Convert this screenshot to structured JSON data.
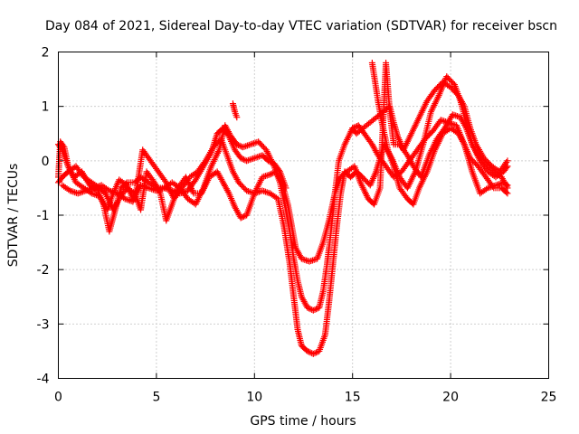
{
  "chart_data": {
    "type": "scatter",
    "title": "Day 084 of 2021, Sidereal Day-to-day VTEC variation (SDTVAR) for receiver bscn",
    "xlabel": "GPS time / hours",
    "ylabel": "SDTVAR / TECUs",
    "xlim": [
      0,
      25
    ],
    "ylim": [
      -4,
      2
    ],
    "xticks": [
      0,
      5,
      10,
      15,
      20,
      25
    ],
    "yticks": [
      -4,
      -3,
      -2,
      -1,
      0,
      1,
      2
    ],
    "grid": true,
    "marker": "plus",
    "color": "#ff0000",
    "series": [
      {
        "points": [
          [
            0.0,
            -0.3
          ],
          [
            0.1,
            0.35
          ],
          [
            0.3,
            0.25
          ],
          [
            0.5,
            -0.1
          ],
          [
            0.8,
            -0.3
          ],
          [
            1.2,
            -0.2
          ],
          [
            1.6,
            -0.45
          ],
          [
            2.0,
            -0.55
          ],
          [
            2.3,
            -0.8
          ],
          [
            2.6,
            -1.3
          ],
          [
            2.9,
            -0.9
          ],
          [
            3.2,
            -0.5
          ],
          [
            3.5,
            -0.4
          ],
          [
            3.9,
            -0.4
          ],
          [
            4.2,
            -0.3
          ],
          [
            4.6,
            -0.4
          ],
          [
            5.0,
            -0.5
          ],
          [
            5.4,
            -0.5
          ],
          [
            5.8,
            -0.4
          ],
          [
            6.2,
            -0.5
          ],
          [
            6.6,
            -0.7
          ],
          [
            7.0,
            -0.8
          ],
          [
            7.4,
            -0.5
          ],
          [
            7.8,
            -0.1
          ],
          [
            8.2,
            0.2
          ],
          [
            8.5,
            0.65
          ],
          [
            8.8,
            0.45
          ],
          [
            9.1,
            0.3
          ],
          [
            9.4,
            0.25
          ],
          [
            9.8,
            0.3
          ],
          [
            10.2,
            0.35
          ],
          [
            10.6,
            0.2
          ],
          [
            11.0,
            -0.1
          ],
          [
            11.3,
            -0.4
          ],
          [
            11.6,
            -0.9
          ],
          [
            11.8,
            -1.3
          ],
          [
            12.0,
            -1.8
          ],
          [
            12.2,
            -2.2
          ],
          [
            12.4,
            -2.5
          ],
          [
            12.7,
            -2.7
          ],
          [
            13.0,
            -2.75
          ],
          [
            13.3,
            -2.7
          ],
          [
            13.5,
            -2.4
          ],
          [
            13.7,
            -1.9
          ],
          [
            13.9,
            -1.3
          ],
          [
            14.1,
            -0.6
          ],
          [
            14.3,
            0.0
          ],
          [
            14.6,
            0.3
          ],
          [
            15.0,
            0.6
          ],
          [
            15.3,
            0.65
          ],
          [
            15.6,
            0.5
          ],
          [
            16.0,
            0.3
          ],
          [
            16.3,
            0.1
          ],
          [
            16.7,
            -0.1
          ],
          [
            17.1,
            -0.3
          ],
          [
            17.5,
            -0.2
          ],
          [
            17.9,
            0.0
          ],
          [
            18.3,
            0.2
          ],
          [
            18.7,
            0.4
          ],
          [
            19.1,
            0.55
          ],
          [
            19.5,
            0.75
          ],
          [
            19.9,
            0.7
          ],
          [
            20.3,
            0.65
          ],
          [
            20.7,
            0.3
          ],
          [
            21.1,
            -0.2
          ],
          [
            21.5,
            -0.6
          ],
          [
            21.9,
            -0.5
          ],
          [
            22.3,
            -0.45
          ],
          [
            22.7,
            -0.4
          ],
          [
            22.9,
            -0.45
          ]
        ]
      },
      {
        "points": [
          [
            0.0,
            0.3
          ],
          [
            0.2,
            0.2
          ],
          [
            0.5,
            -0.1
          ],
          [
            0.9,
            -0.4
          ],
          [
            1.3,
            -0.5
          ],
          [
            1.7,
            -0.6
          ],
          [
            2.1,
            -0.65
          ],
          [
            2.5,
            -0.9
          ],
          [
            2.8,
            -0.6
          ],
          [
            3.1,
            -0.35
          ],
          [
            3.5,
            -0.45
          ],
          [
            3.8,
            -0.7
          ],
          [
            4.0,
            -0.5
          ],
          [
            4.3,
            0.2
          ],
          [
            4.7,
            0.0
          ],
          [
            5.1,
            -0.2
          ],
          [
            5.5,
            -0.4
          ],
          [
            5.9,
            -0.7
          ],
          [
            6.3,
            -0.5
          ],
          [
            6.7,
            -0.3
          ],
          [
            7.1,
            -0.2
          ],
          [
            7.5,
            0.0
          ],
          [
            7.9,
            0.25
          ],
          [
            8.3,
            0.4
          ],
          [
            8.6,
            0.1
          ],
          [
            8.9,
            -0.2
          ],
          [
            9.2,
            -0.4
          ],
          [
            9.6,
            -0.55
          ],
          [
            10.0,
            -0.6
          ],
          [
            10.4,
            -0.55
          ],
          [
            10.8,
            -0.6
          ],
          [
            11.2,
            -0.7
          ],
          [
            11.5,
            -1.2
          ],
          [
            11.8,
            -1.9
          ],
          [
            12.0,
            -2.5
          ],
          [
            12.2,
            -3.1
          ],
          [
            12.4,
            -3.4
          ],
          [
            12.7,
            -3.5
          ],
          [
            13.0,
            -3.55
          ],
          [
            13.3,
            -3.5
          ],
          [
            13.6,
            -3.2
          ],
          [
            13.8,
            -2.6
          ],
          [
            14.0,
            -1.9
          ],
          [
            14.2,
            -1.2
          ],
          [
            14.4,
            -0.6
          ],
          [
            14.6,
            -0.2
          ],
          [
            14.9,
            -0.3
          ],
          [
            15.2,
            -0.2
          ],
          [
            15.5,
            -0.3
          ],
          [
            15.9,
            -0.45
          ],
          [
            16.2,
            -0.2
          ],
          [
            16.6,
            0.3
          ],
          [
            17.0,
            0.05
          ],
          [
            17.4,
            -0.3
          ],
          [
            17.8,
            -0.5
          ],
          [
            18.2,
            -0.2
          ],
          [
            18.6,
            0.3
          ],
          [
            19.0,
            0.9
          ],
          [
            19.4,
            1.2
          ],
          [
            19.8,
            1.55
          ],
          [
            20.2,
            1.4
          ],
          [
            20.5,
            1.1
          ],
          [
            20.8,
            0.7
          ],
          [
            21.1,
            0.3
          ],
          [
            21.5,
            0.0
          ],
          [
            21.9,
            -0.2
          ],
          [
            22.3,
            -0.3
          ],
          [
            22.7,
            -0.2
          ],
          [
            22.9,
            -0.1
          ]
        ]
      },
      {
        "points": [
          [
            0.0,
            -0.4
          ],
          [
            0.2,
            -0.3
          ],
          [
            0.5,
            -0.2
          ],
          [
            0.9,
            -0.1
          ],
          [
            1.3,
            -0.3
          ],
          [
            1.7,
            -0.4
          ],
          [
            2.1,
            -0.5
          ],
          [
            2.4,
            -0.6
          ],
          [
            2.8,
            -0.9
          ],
          [
            3.1,
            -0.7
          ],
          [
            3.5,
            -0.5
          ],
          [
            3.9,
            -0.6
          ],
          [
            4.2,
            -0.9
          ],
          [
            4.5,
            -0.2
          ],
          [
            4.9,
            -0.4
          ],
          [
            5.2,
            -0.6
          ],
          [
            5.5,
            -1.1
          ],
          [
            5.8,
            -0.8
          ],
          [
            6.1,
            -0.5
          ],
          [
            6.5,
            -0.3
          ],
          [
            6.9,
            -0.6
          ],
          [
            7.3,
            -0.6
          ],
          [
            7.7,
            -0.3
          ],
          [
            8.1,
            -0.2
          ],
          [
            8.4,
            -0.4
          ],
          [
            8.7,
            -0.6
          ],
          [
            9.0,
            -0.85
          ],
          [
            9.3,
            -1.05
          ],
          [
            9.6,
            -1.0
          ],
          [
            10.0,
            -0.6
          ],
          [
            10.4,
            -0.3
          ],
          [
            10.8,
            -0.25
          ],
          [
            11.1,
            -0.2
          ],
          [
            11.4,
            -0.4
          ],
          [
            11.7,
            -0.8
          ],
          [
            11.9,
            -1.2
          ],
          [
            12.1,
            -1.6
          ],
          [
            12.4,
            -1.8
          ],
          [
            12.8,
            -1.85
          ],
          [
            13.2,
            -1.8
          ],
          [
            13.5,
            -1.5
          ],
          [
            13.8,
            -1.1
          ],
          [
            14.1,
            -0.6
          ],
          [
            14.4,
            -0.3
          ],
          [
            14.7,
            -0.2
          ],
          [
            15.1,
            -0.1
          ],
          [
            15.4,
            -0.4
          ],
          [
            15.8,
            -0.7
          ],
          [
            16.1,
            -0.8
          ],
          [
            16.4,
            -0.5
          ],
          [
            16.7,
            1.8
          ],
          [
            16.9,
            0.9
          ],
          [
            17.1,
            0.3
          ],
          [
            17.4,
            0.3
          ],
          [
            17.8,
            0.1
          ],
          [
            18.1,
            -0.1
          ],
          [
            18.5,
            -0.3
          ],
          [
            18.9,
            0.1
          ],
          [
            19.3,
            0.4
          ],
          [
            19.7,
            0.6
          ],
          [
            20.1,
            0.85
          ],
          [
            20.5,
            0.8
          ],
          [
            20.8,
            0.6
          ],
          [
            21.1,
            0.3
          ],
          [
            21.4,
            0.1
          ],
          [
            21.8,
            -0.05
          ],
          [
            22.2,
            -0.2
          ],
          [
            22.6,
            -0.3
          ],
          [
            22.9,
            -0.5
          ]
        ]
      },
      {
        "points": [
          [
            0.2,
            -0.45
          ],
          [
            0.6,
            -0.55
          ],
          [
            1.0,
            -0.6
          ],
          [
            1.4,
            -0.55
          ],
          [
            1.8,
            -0.5
          ],
          [
            2.2,
            -0.45
          ],
          [
            2.6,
            -0.55
          ],
          [
            3.0,
            -0.6
          ],
          [
            3.4,
            -0.7
          ],
          [
            3.8,
            -0.75
          ],
          [
            4.2,
            -0.45
          ],
          [
            4.6,
            -0.5
          ],
          [
            5.0,
            -0.55
          ],
          [
            5.4,
            -0.5
          ],
          [
            5.8,
            -0.55
          ],
          [
            6.2,
            -0.6
          ],
          [
            6.6,
            -0.55
          ],
          [
            7.0,
            -0.35
          ],
          [
            7.4,
            -0.1
          ],
          [
            7.8,
            0.15
          ],
          [
            8.1,
            0.5
          ],
          [
            8.4,
            0.6
          ],
          [
            8.7,
            0.45
          ],
          [
            9.0,
            0.2
          ],
          [
            9.3,
            0.05
          ],
          [
            9.6,
            0.0
          ],
          [
            10.0,
            0.05
          ],
          [
            10.4,
            0.1
          ],
          [
            10.7,
            0.0
          ],
          [
            11.0,
            -0.05
          ],
          [
            11.3,
            -0.2
          ],
          [
            11.6,
            -0.5
          ],
          [
            16.0,
            1.8
          ],
          [
            16.3,
            1.1
          ],
          [
            16.5,
            0.7
          ],
          [
            16.8,
            0.2
          ],
          [
            17.1,
            -0.1
          ],
          [
            17.4,
            -0.5
          ],
          [
            17.8,
            -0.7
          ],
          [
            18.1,
            -0.8
          ],
          [
            18.4,
            -0.5
          ],
          [
            18.8,
            -0.2
          ],
          [
            19.2,
            0.2
          ],
          [
            19.6,
            0.5
          ],
          [
            20.0,
            0.6
          ],
          [
            20.4,
            0.5
          ],
          [
            20.7,
            0.3
          ],
          [
            21.0,
            0.05
          ],
          [
            21.4,
            -0.1
          ],
          [
            21.8,
            -0.3
          ],
          [
            22.2,
            -0.5
          ],
          [
            22.6,
            -0.5
          ],
          [
            22.9,
            -0.6
          ]
        ]
      },
      {
        "points": [
          [
            8.9,
            1.05
          ],
          [
            9.0,
            0.9
          ],
          [
            9.1,
            0.8
          ],
          [
            15.0,
            0.6
          ],
          [
            15.2,
            0.5
          ],
          [
            16.9,
            1.0
          ],
          [
            17.1,
            0.7
          ],
          [
            17.3,
            0.45
          ],
          [
            17.6,
            0.2
          ],
          [
            18.0,
            0.5
          ],
          [
            18.4,
            0.8
          ],
          [
            18.8,
            1.1
          ],
          [
            19.2,
            1.3
          ],
          [
            19.6,
            1.45
          ],
          [
            20.0,
            1.35
          ],
          [
            20.4,
            1.2
          ],
          [
            20.7,
            1.0
          ],
          [
            21.0,
            0.6
          ],
          [
            21.3,
            0.3
          ],
          [
            21.7,
            0.05
          ],
          [
            22.1,
            -0.1
          ],
          [
            22.5,
            -0.2
          ],
          [
            22.9,
            0.0
          ]
        ]
      }
    ]
  }
}
